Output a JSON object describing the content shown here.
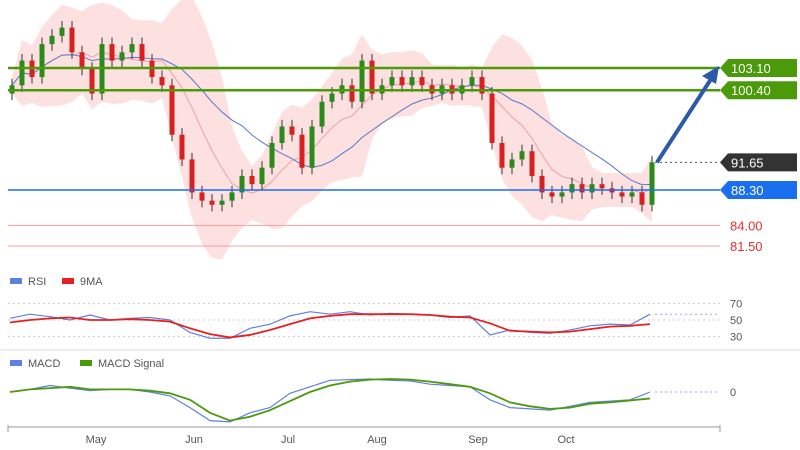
{
  "chart_data": [
    {
      "type": "candlestick",
      "panel": "price",
      "closes": [
        101,
        104,
        102,
        106,
        107,
        108,
        105,
        103,
        100,
        106,
        104,
        105,
        106,
        104,
        102,
        101,
        95,
        92,
        88,
        87,
        86.5,
        87,
        88,
        90,
        89,
        91,
        94,
        96,
        95,
        91,
        96,
        99,
        100,
        101,
        99,
        104,
        100,
        101,
        102,
        101,
        102,
        101,
        100,
        101,
        100,
        101,
        102,
        100,
        94,
        91,
        92,
        93,
        90,
        88,
        87.5,
        88,
        89,
        88,
        89,
        88.5,
        88,
        87.5,
        88,
        86.5,
        91.65
      ],
      "levels": [
        {
          "label": "103.10",
          "value": 103.1,
          "color": "#4a9a0a",
          "style": "resistance"
        },
        {
          "label": "100.40",
          "value": 100.4,
          "color": "#4a9a0a",
          "style": "resistance"
        },
        {
          "label": "91.65",
          "value": 91.65,
          "color": "#333333",
          "style": "current"
        },
        {
          "label": "88.30",
          "value": 88.3,
          "color": "#1a6ff0",
          "style": "pivot"
        },
        {
          "label": "84.00",
          "value": 84.0,
          "color": "#e83030",
          "style": "support"
        },
        {
          "label": "81.50",
          "value": 81.5,
          "color": "#e83030",
          "style": "support"
        }
      ],
      "arrow": {
        "from": 91.65,
        "to": 103.1,
        "color": "#2a5aa8"
      },
      "ylim": [
        78,
        111
      ]
    },
    {
      "type": "line",
      "panel": "rsi",
      "series": [
        {
          "name": "RSI",
          "color": "#6080e0",
          "values": [
            52,
            57,
            54,
            50,
            56,
            50,
            52,
            53,
            50,
            35,
            28,
            28,
            40,
            45,
            55,
            60,
            57,
            60,
            56,
            58,
            57,
            56,
            53,
            55,
            32,
            38,
            35,
            34,
            38,
            43,
            45,
            44,
            57
          ]
        },
        {
          "name": "9MA",
          "color": "#e82020",
          "values": [
            47,
            50,
            52,
            53,
            50,
            50,
            51,
            50,
            48,
            40,
            33,
            29,
            32,
            38,
            45,
            52,
            55,
            57,
            57,
            57,
            57,
            56,
            54,
            53,
            46,
            37,
            36,
            35,
            36,
            39,
            42,
            43,
            45
          ]
        }
      ],
      "ticks": [
        "70",
        "50",
        "30"
      ],
      "tick_values": [
        70,
        50,
        30
      ],
      "ylim": [
        20,
        80
      ]
    },
    {
      "type": "line",
      "panel": "macd",
      "series": [
        {
          "name": "MACD",
          "color": "#6080e0",
          "values": [
            0,
            0.2,
            0.5,
            0.3,
            0.1,
            0.2,
            0.2,
            0,
            -0.3,
            -1.2,
            -2.2,
            -2.3,
            -1.6,
            -1.2,
            -0.1,
            0.4,
            0.9,
            0.95,
            1.0,
            0.9,
            0.85,
            0.6,
            0.5,
            0.4,
            -0.6,
            -1.2,
            -1.3,
            -1.4,
            -1.1,
            -0.8,
            -0.7,
            -0.6,
            0
          ]
        },
        {
          "name": "MACD Signal",
          "color": "#4a9a0a",
          "values": [
            0,
            0.2,
            0.3,
            0.4,
            0.2,
            0.2,
            0.2,
            0.1,
            -0.1,
            -0.6,
            -1.6,
            -2.2,
            -1.9,
            -1.4,
            -0.7,
            0,
            0.5,
            0.8,
            0.95,
            1.0,
            0.95,
            0.8,
            0.6,
            0.4,
            -0.1,
            -0.8,
            -1.1,
            -1.3,
            -1.2,
            -0.9,
            -0.8,
            -0.65,
            -0.5
          ]
        }
      ],
      "ticks": [
        "0"
      ],
      "ylim": [
        -3,
        2
      ]
    },
    {
      "type": "axis",
      "x_tick_labels": [
        "May",
        "Jun",
        "Jul",
        "Aug",
        "Sep",
        "Oct"
      ]
    }
  ],
  "colors": {
    "up": "#2a8a1a",
    "down": "#d82020",
    "band": "#fdd8d8",
    "ma": "#5a78c8"
  }
}
